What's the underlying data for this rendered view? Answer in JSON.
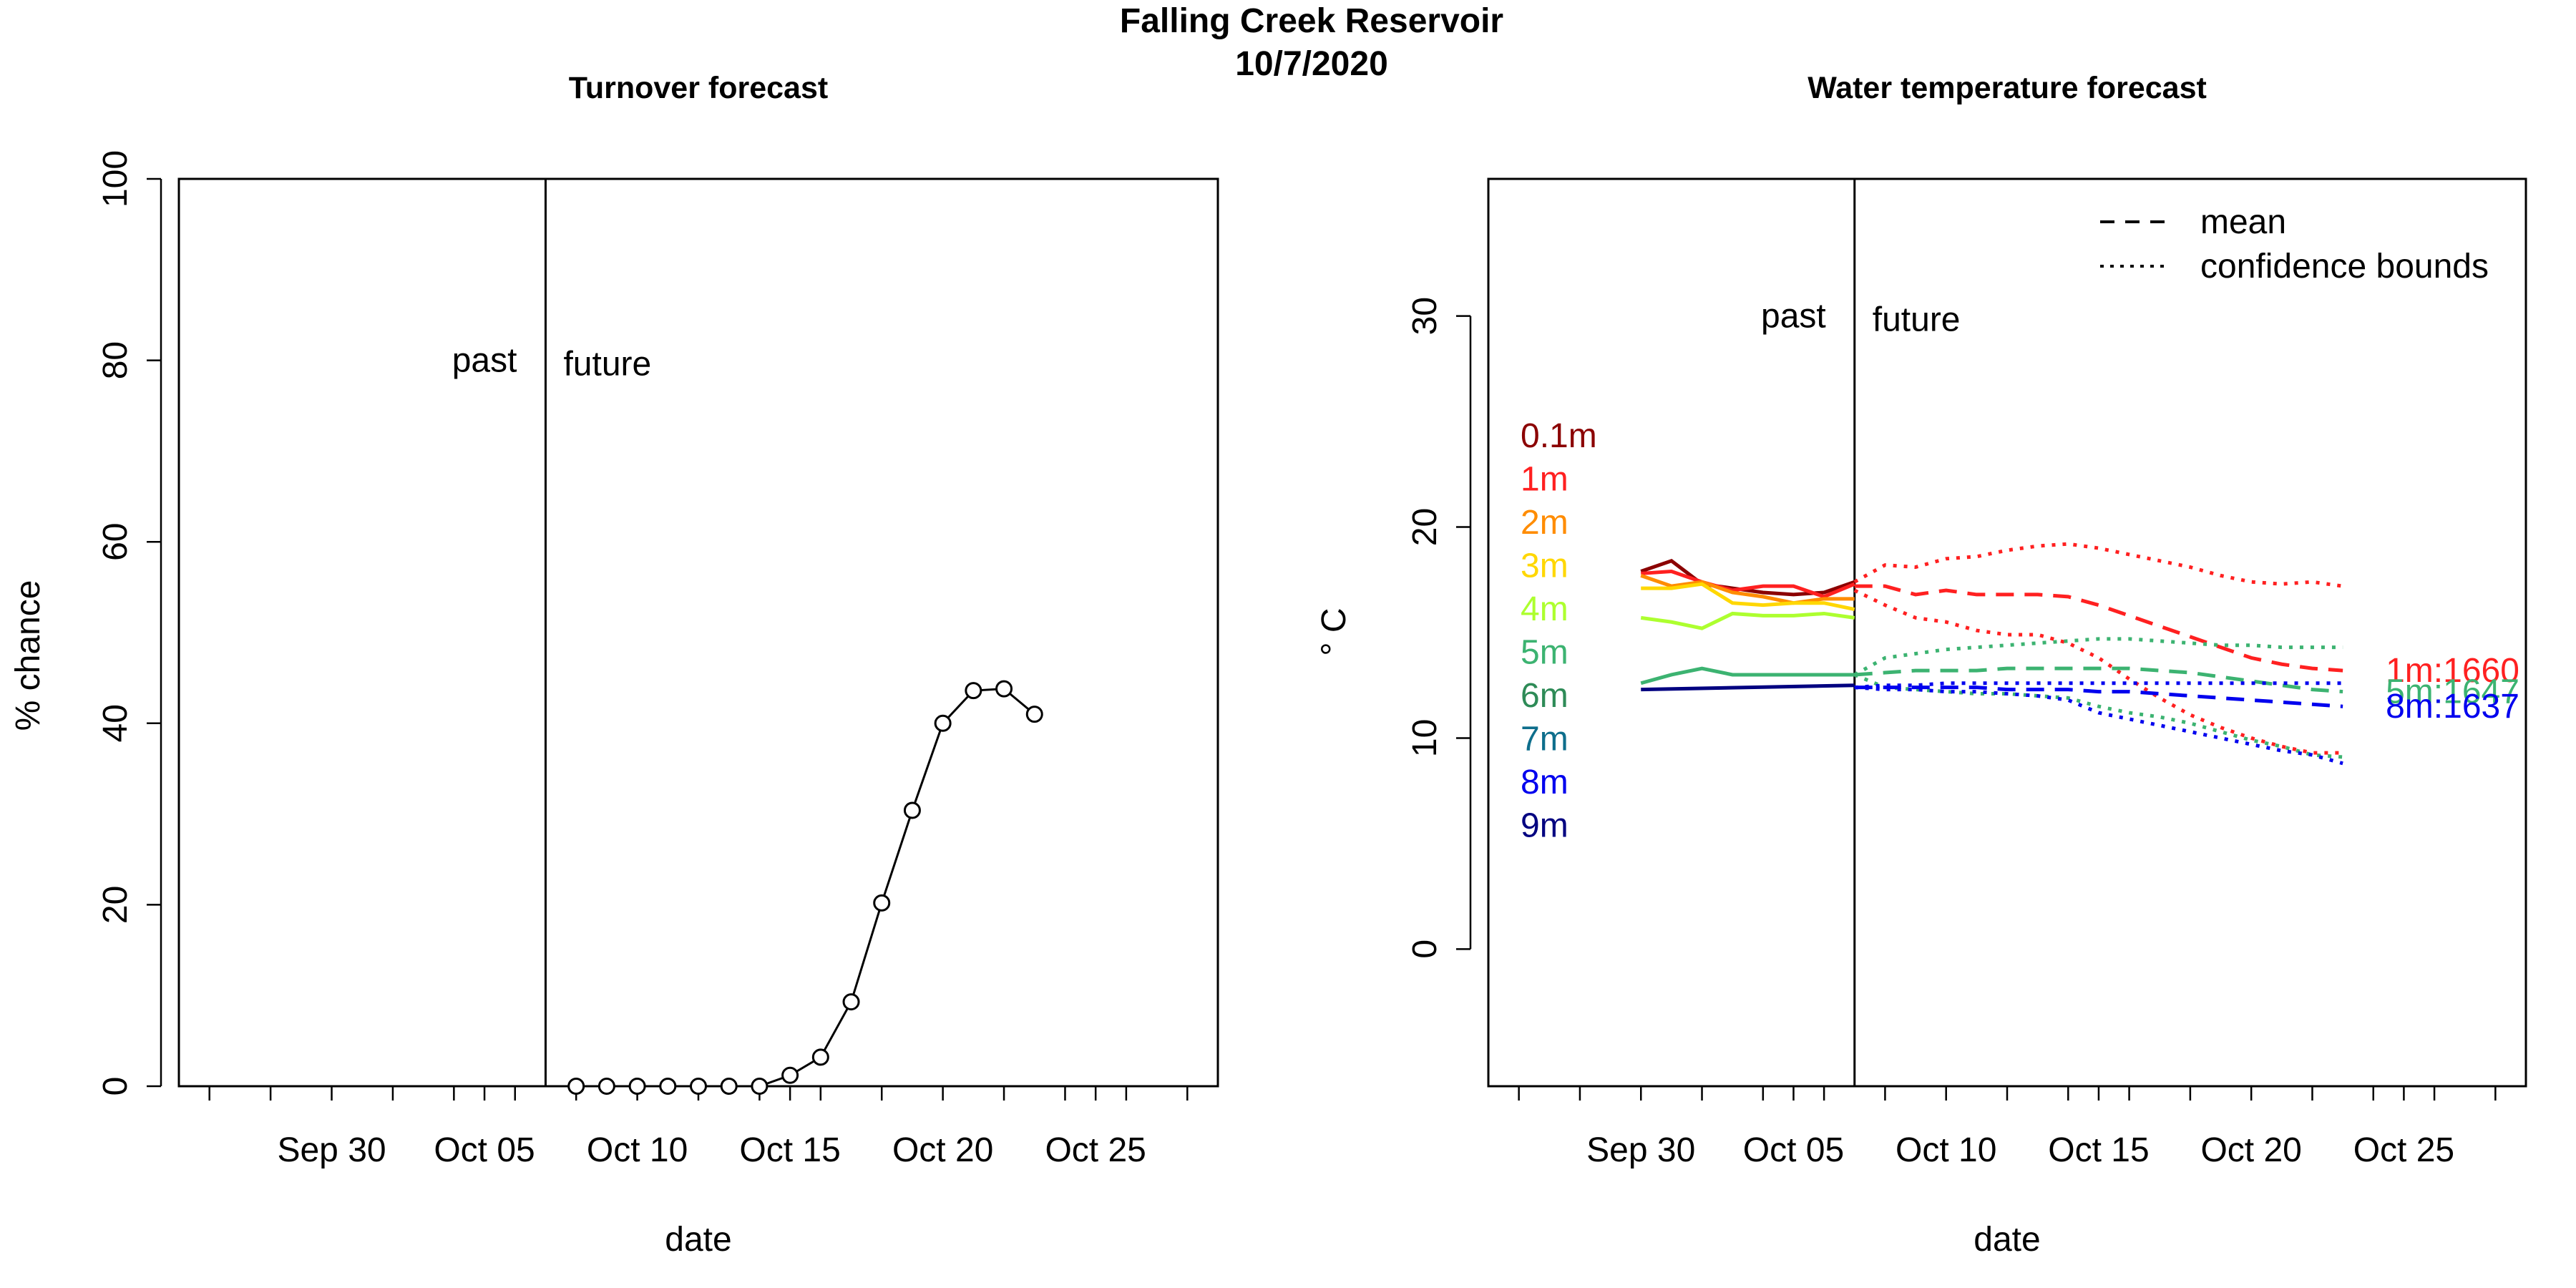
{
  "page": {
    "title_line1": "Falling Creek Reservoir",
    "title_line2": "10/7/2020"
  },
  "chart_data": [
    {
      "type": "line",
      "title": "Turnover forecast",
      "xlabel": "date",
      "ylabel": "% chance",
      "xlim": [
        "2020-09-25",
        "2020-10-29"
      ],
      "ylim": [
        0,
        100
      ],
      "y_ticks": [
        0,
        20,
        40,
        60,
        80,
        100
      ],
      "x_tick_labels": [
        "Sep 30",
        "Oct 05",
        "Oct 10",
        "Oct 15",
        "Oct 20",
        "Oct 25"
      ],
      "x_tick_dates": [
        "2020-09-30",
        "2020-10-05",
        "2020-10-10",
        "2020-10-15",
        "2020-10-20",
        "2020-10-25"
      ],
      "grid": false,
      "marker": "open-circle",
      "line_color": "#000000",
      "divider": {
        "date": "2020-10-07",
        "left_label": "past",
        "right_label": "future",
        "label_y": 80
      },
      "series": [
        {
          "x": [
            "2020-10-08",
            "2020-10-09",
            "2020-10-10",
            "2020-10-11",
            "2020-10-12",
            "2020-10-13",
            "2020-10-14",
            "2020-10-15",
            "2020-10-16",
            "2020-10-17",
            "2020-10-18",
            "2020-10-19",
            "2020-10-20",
            "2020-10-21",
            "2020-10-22",
            "2020-10-23"
          ],
          "values": [
            0,
            0,
            0,
            0,
            0,
            0,
            0,
            1.2,
            3.2,
            9.3,
            20.2,
            30.4,
            40,
            43.6,
            43.8,
            41
          ]
        }
      ]
    },
    {
      "type": "line",
      "title": "Water temperature forecast",
      "xlabel": "date",
      "ylabel": "° C",
      "xlim": [
        "2020-09-25",
        "2020-10-29"
      ],
      "ylim": [
        -6.5,
        36.5
      ],
      "y_ticks": [
        0,
        10,
        20,
        30
      ],
      "x_tick_labels": [
        "Sep 30",
        "Oct 05",
        "Oct 10",
        "Oct 15",
        "Oct 20",
        "Oct 25"
      ],
      "x_tick_dates": [
        "2020-09-30",
        "2020-10-05",
        "2020-10-10",
        "2020-10-15",
        "2020-10-20",
        "2020-10-25"
      ],
      "grid": false,
      "divider": {
        "date": "2020-10-07",
        "left_label": "past",
        "right_label": "future",
        "label_y": 30
      },
      "legend": {
        "placement": "top-right",
        "entries": [
          {
            "label": "mean",
            "style": "dashed"
          },
          {
            "label": "confidence bounds",
            "style": "dotted"
          }
        ]
      },
      "depth_labels": [
        {
          "label": "0.1m",
          "color": "#8B0000"
        },
        {
          "label": "1m",
          "color": "#FF2020"
        },
        {
          "label": "2m",
          "color": "#FF8C00"
        },
        {
          "label": "3m",
          "color": "#FFD700"
        },
        {
          "label": "4m",
          "color": "#ADFF2F"
        },
        {
          "label": "5m",
          "color": "#3CB371"
        },
        {
          "label": "6m",
          "color": "#2E8B57"
        },
        {
          "label": "7m",
          "color": "#0E6E8C"
        },
        {
          "label": "8m",
          "color": "#0000EE"
        },
        {
          "label": "9m",
          "color": "#000080"
        }
      ],
      "observed": [
        {
          "color": "#8B0000",
          "x": [
            "2020-09-30",
            "2020-10-01",
            "2020-10-02",
            "2020-10-03",
            "2020-10-04",
            "2020-10-05",
            "2020-10-06",
            "2020-10-07"
          ],
          "values": [
            17.9,
            18.4,
            17.3,
            17.1,
            16.9,
            16.8,
            16.9,
            17.4
          ]
        },
        {
          "color": "#FF2020",
          "x": [
            "2020-09-30",
            "2020-10-01",
            "2020-10-02",
            "2020-10-03",
            "2020-10-04",
            "2020-10-05",
            "2020-10-06",
            "2020-10-07"
          ],
          "values": [
            17.8,
            17.9,
            17.4,
            17.0,
            17.2,
            17.2,
            16.7,
            17.3
          ]
        },
        {
          "color": "#FF8C00",
          "x": [
            "2020-09-30",
            "2020-10-01",
            "2020-10-02",
            "2020-10-03",
            "2020-10-04",
            "2020-10-05",
            "2020-10-06",
            "2020-10-07"
          ],
          "values": [
            17.7,
            17.2,
            17.4,
            16.9,
            16.7,
            16.4,
            16.6,
            16.6
          ]
        },
        {
          "color": "#FFD700",
          "x": [
            "2020-09-30",
            "2020-10-01",
            "2020-10-02",
            "2020-10-03",
            "2020-10-04",
            "2020-10-05",
            "2020-10-06",
            "2020-10-07"
          ],
          "values": [
            17.1,
            17.1,
            17.3,
            16.4,
            16.3,
            16.4,
            16.4,
            16.1
          ]
        },
        {
          "color": "#ADFF2F",
          "x": [
            "2020-09-30",
            "2020-10-01",
            "2020-10-02",
            "2020-10-03",
            "2020-10-04",
            "2020-10-05",
            "2020-10-06",
            "2020-10-07"
          ],
          "values": [
            15.7,
            15.5,
            15.2,
            15.9,
            15.8,
            15.8,
            15.9,
            15.7
          ]
        },
        {
          "color": "#3CB371",
          "x": [
            "2020-09-30",
            "2020-10-01",
            "2020-10-02",
            "2020-10-03",
            "2020-10-04",
            "2020-10-05",
            "2020-10-06",
            "2020-10-07"
          ],
          "values": [
            12.6,
            13.0,
            13.3,
            13.0,
            13.0,
            13.0,
            13.0,
            13.0
          ]
        },
        {
          "color": "#000080",
          "x": [
            "2020-09-30",
            "2020-10-07"
          ],
          "values": [
            12.3,
            12.5
          ]
        }
      ],
      "forecast": [
        {
          "name": "1m",
          "color": "#FF2020",
          "x": [
            "2020-10-07",
            "2020-10-08",
            "2020-10-09",
            "2020-10-10",
            "2020-10-11",
            "2020-10-12",
            "2020-10-13",
            "2020-10-14",
            "2020-10-15",
            "2020-10-16",
            "2020-10-17",
            "2020-10-18",
            "2020-10-19",
            "2020-10-20",
            "2020-10-21",
            "2020-10-22",
            "2020-10-23"
          ],
          "mean": [
            17.2,
            17.2,
            16.8,
            17.0,
            16.8,
            16.8,
            16.8,
            16.7,
            16.3,
            15.8,
            15.3,
            14.8,
            14.3,
            13.8,
            13.5,
            13.3,
            13.2
          ],
          "upper": [
            17.4,
            18.2,
            18.1,
            18.5,
            18.6,
            18.9,
            19.1,
            19.2,
            19.0,
            18.7,
            18.4,
            18.1,
            17.7,
            17.4,
            17.3,
            17.4,
            17.2
          ],
          "lower": [
            17.0,
            16.3,
            15.7,
            15.5,
            15.1,
            14.9,
            14.9,
            14.5,
            13.8,
            12.8,
            11.9,
            11.1,
            10.5,
            10.0,
            9.6,
            9.3,
            9.3
          ],
          "end_label": "1m:1660"
        },
        {
          "name": "5m",
          "color": "#3CB371",
          "x": [
            "2020-10-07",
            "2020-10-08",
            "2020-10-09",
            "2020-10-10",
            "2020-10-11",
            "2020-10-12",
            "2020-10-13",
            "2020-10-14",
            "2020-10-15",
            "2020-10-16",
            "2020-10-17",
            "2020-10-18",
            "2020-10-19",
            "2020-10-20",
            "2020-10-21",
            "2020-10-22",
            "2020-10-23"
          ],
          "mean": [
            13.0,
            13.1,
            13.2,
            13.2,
            13.2,
            13.3,
            13.3,
            13.3,
            13.3,
            13.3,
            13.2,
            13.1,
            12.9,
            12.7,
            12.5,
            12.3,
            12.2
          ],
          "upper": [
            13.0,
            13.8,
            14.0,
            14.2,
            14.3,
            14.4,
            14.5,
            14.6,
            14.7,
            14.7,
            14.6,
            14.5,
            14.4,
            14.4,
            14.3,
            14.3,
            14.3
          ],
          "lower": [
            13.0,
            12.4,
            12.3,
            12.2,
            12.1,
            12.1,
            12.0,
            11.9,
            11.5,
            11.2,
            11.0,
            10.7,
            10.3,
            9.9,
            9.6,
            9.2,
            9.1
          ],
          "end_label": "5m:1647"
        },
        {
          "name": "8m",
          "color": "#0000EE",
          "x": [
            "2020-10-07",
            "2020-10-08",
            "2020-10-09",
            "2020-10-10",
            "2020-10-11",
            "2020-10-12",
            "2020-10-13",
            "2020-10-14",
            "2020-10-15",
            "2020-10-16",
            "2020-10-17",
            "2020-10-18",
            "2020-10-19",
            "2020-10-20",
            "2020-10-21",
            "2020-10-22",
            "2020-10-23"
          ],
          "mean": [
            12.4,
            12.4,
            12.4,
            12.4,
            12.4,
            12.3,
            12.3,
            12.3,
            12.2,
            12.2,
            12.1,
            12.0,
            11.9,
            11.8,
            11.7,
            11.6,
            11.5
          ],
          "upper": [
            12.4,
            12.5,
            12.5,
            12.6,
            12.6,
            12.6,
            12.6,
            12.6,
            12.6,
            12.6,
            12.6,
            12.6,
            12.6,
            12.6,
            12.6,
            12.6,
            12.6
          ],
          "lower": [
            12.4,
            12.3,
            12.3,
            12.2,
            12.2,
            12.1,
            12.0,
            11.8,
            11.2,
            10.9,
            10.6,
            10.3,
            10.0,
            9.7,
            9.4,
            9.2,
            8.8
          ],
          "end_label": "8m:1637"
        }
      ]
    }
  ]
}
